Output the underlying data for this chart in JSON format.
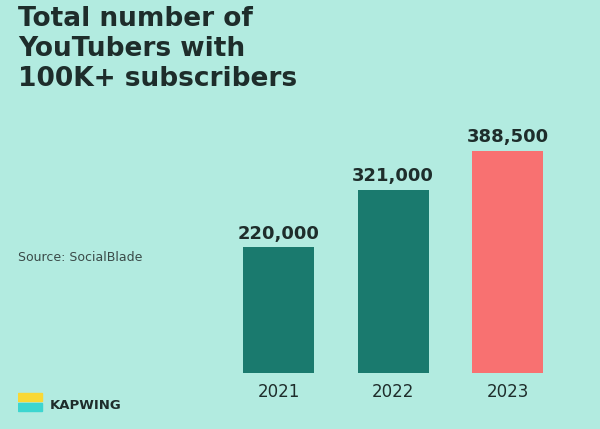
{
  "categories": [
    "2021",
    "2022",
    "2023"
  ],
  "values": [
    220000,
    321000,
    388500
  ],
  "bar_colors": [
    "#1a7a6e",
    "#1a7a6e",
    "#f87171"
  ],
  "bar_labels": [
    "220,000",
    "321,000",
    "388,500"
  ],
  "background_color": "#b2ebe0",
  "title_lines": [
    "Total number of",
    "YouTubers with",
    "100K+ subscribers"
  ],
  "source_text": "Source: SocialBlade",
  "brand_text": "KAPWING",
  "title_fontsize": 19,
  "label_fontsize": 13,
  "axis_fontsize": 12,
  "source_fontsize": 9,
  "ylim": [
    0,
    450000
  ],
  "bar_width": 0.62,
  "logo_color1": "#f9d835",
  "logo_color2": "#3dd6d0",
  "text_color": "#1e2d2b"
}
